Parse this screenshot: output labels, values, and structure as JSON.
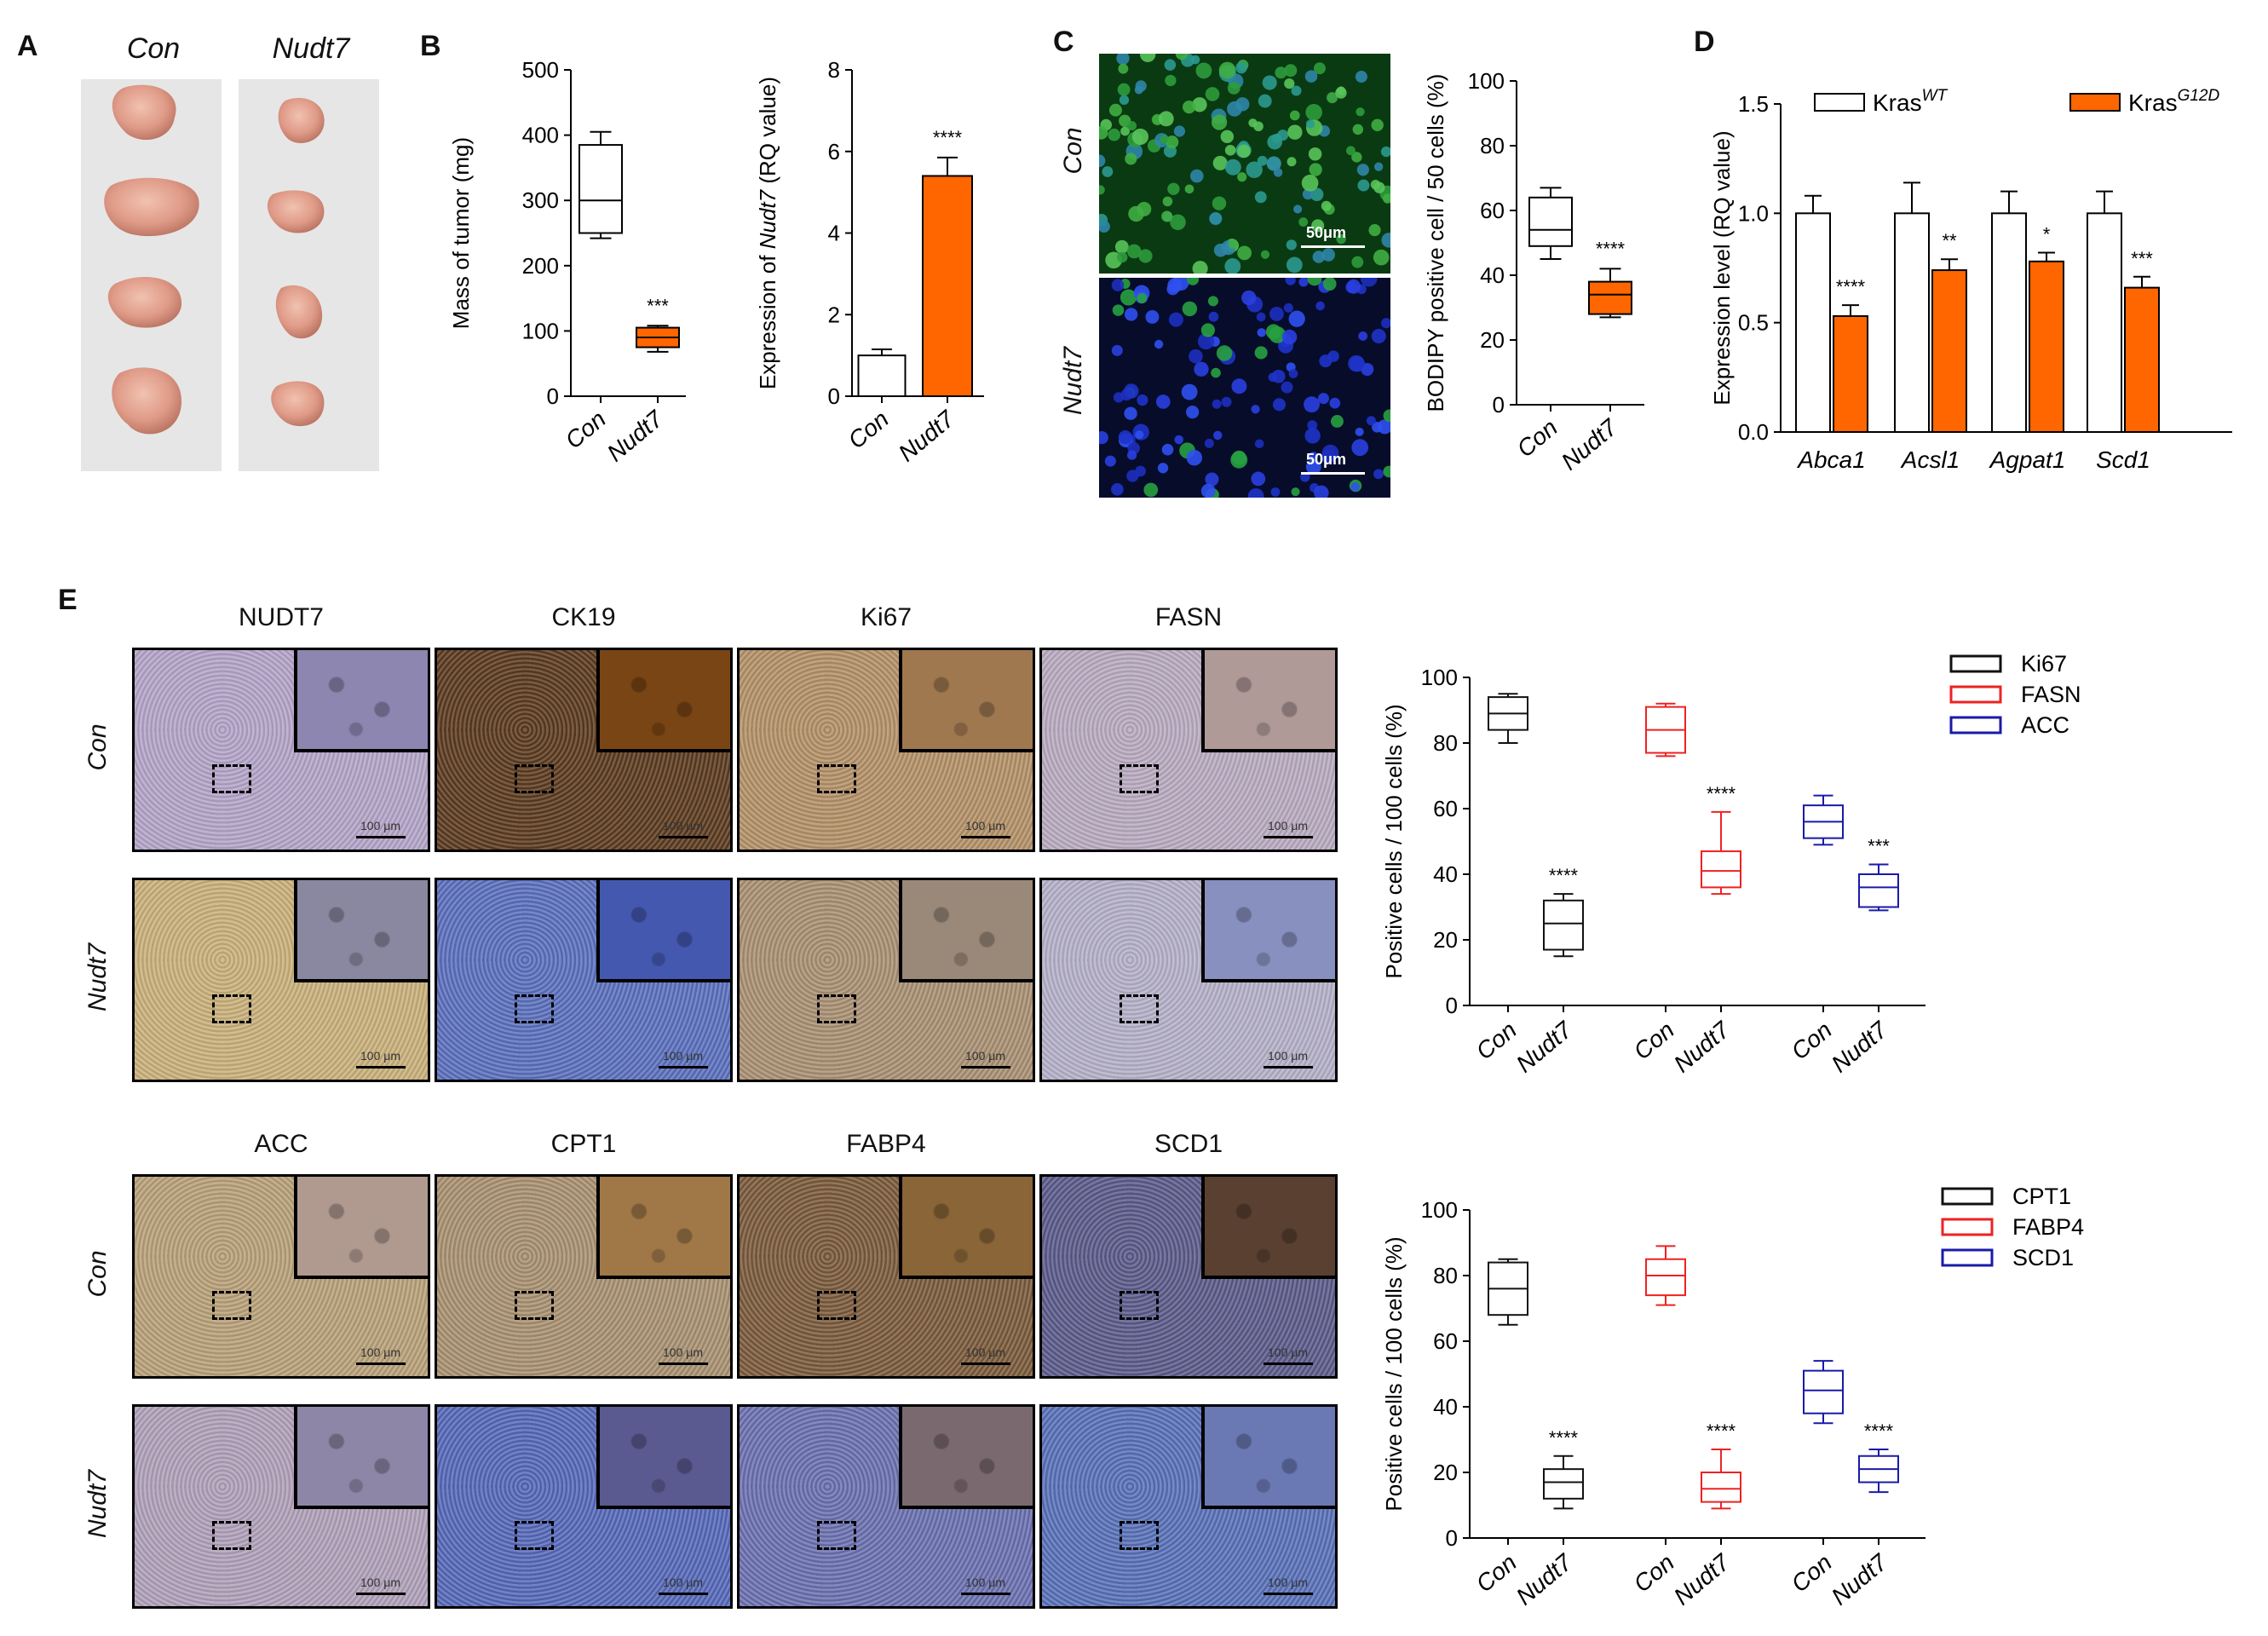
{
  "panel_labels": {
    "A": "A",
    "B": "B",
    "C": "C",
    "D": "D",
    "E": "E"
  },
  "panelA": {
    "col1": "Con",
    "col2": "Nudt7"
  },
  "colors": {
    "con_fill": "#ffffff",
    "nudt7_fill": "#ff6600",
    "ki67": "#111111",
    "fasn": "#ee2222",
    "acc": "#1a1aa8"
  },
  "chart_data": [
    {
      "type": "box",
      "id": "B1",
      "ylabel": "Mass of tumor (mg)",
      "categories": [
        "Con",
        "Nudt7"
      ],
      "ylim": [
        0,
        500
      ],
      "yticks": [
        0,
        100,
        200,
        300,
        400,
        500
      ],
      "boxes": [
        {
          "min": 242,
          "q1": 250,
          "median": 300,
          "q3": 385,
          "max": 405
        },
        {
          "min": 68,
          "q1": 75,
          "median": 90,
          "q3": 105,
          "max": 108
        }
      ],
      "annotations": [
        "",
        "***"
      ]
    },
    {
      "type": "bar",
      "id": "B2",
      "ylabel_pre": "Expression of ",
      "ylabel_gene": "Nudt7",
      "ylabel_post": " (RQ value)",
      "categories": [
        "Con",
        "Nudt7"
      ],
      "values": [
        1.0,
        5.4
      ],
      "errors": [
        0.15,
        0.45
      ],
      "ylim": [
        0,
        8
      ],
      "yticks": [
        0,
        2,
        4,
        6,
        8
      ],
      "annotations": [
        "",
        "****"
      ]
    },
    {
      "type": "box",
      "id": "C",
      "ylabel": "BODIPY positive cell / 50 cells (%)",
      "categories": [
        "Con",
        "Nudt7"
      ],
      "ylim": [
        0,
        100
      ],
      "yticks": [
        0,
        20,
        40,
        60,
        80,
        100
      ],
      "boxes": [
        {
          "min": 45,
          "q1": 49,
          "median": 54,
          "q3": 64,
          "max": 67
        },
        {
          "min": 27,
          "q1": 28,
          "median": 34,
          "q3": 38,
          "max": 42
        }
      ],
      "annotations": [
        "",
        "****"
      ]
    },
    {
      "type": "bar",
      "id": "D",
      "ylabel": "Expression level (RQ value)",
      "categories": [
        "Abca1",
        "Acsl1",
        "Agpat1",
        "Scd1"
      ],
      "ylim": [
        0,
        1.5
      ],
      "yticks": [
        "0.0",
        "0.5",
        "1.0",
        "1.5"
      ],
      "series": [
        {
          "name": "Kras",
          "sup": "WT",
          "values": [
            1.0,
            1.0,
            1.0,
            1.0
          ],
          "errors": [
            0.08,
            0.14,
            0.1,
            0.1
          ]
        },
        {
          "name": "Kras",
          "sup": "G12D",
          "values": [
            0.53,
            0.74,
            0.78,
            0.66
          ],
          "errors": [
            0.05,
            0.05,
            0.04,
            0.05
          ]
        }
      ],
      "annotations": [
        "****",
        "**",
        "*",
        "***"
      ]
    },
    {
      "type": "box",
      "id": "E1",
      "ylabel": "Positive cells / 100 cells (%)",
      "ylim": [
        0,
        100
      ],
      "yticks": [
        0,
        20,
        40,
        60,
        80,
        100
      ],
      "categories": [
        "Con",
        "Nudt7",
        "Con",
        "Nudt7",
        "Con",
        "Nudt7"
      ],
      "legend": [
        "Ki67",
        "FASN",
        "ACC"
      ],
      "groups": [
        {
          "name": "Ki67",
          "boxes": [
            {
              "min": 80,
              "q1": 84,
              "median": 89,
              "q3": 94,
              "max": 95
            },
            {
              "min": 15,
              "q1": 17,
              "median": 25,
              "q3": 32,
              "max": 34
            }
          ],
          "annotation": "****"
        },
        {
          "name": "FASN",
          "boxes": [
            {
              "min": 76,
              "q1": 77,
              "median": 84,
              "q3": 91,
              "max": 92
            },
            {
              "min": 34,
              "q1": 36,
              "median": 41,
              "q3": 47,
              "max": 59
            }
          ],
          "annotation": "****"
        },
        {
          "name": "ACC",
          "boxes": [
            {
              "min": 49,
              "q1": 51,
              "median": 56,
              "q3": 61,
              "max": 64
            },
            {
              "min": 29,
              "q1": 30,
              "median": 36,
              "q3": 40,
              "max": 43
            }
          ],
          "annotation": "***"
        }
      ]
    },
    {
      "type": "box",
      "id": "E2",
      "ylabel": "Positive cells / 100 cells (%)",
      "ylim": [
        0,
        100
      ],
      "yticks": [
        0,
        20,
        40,
        60,
        80,
        100
      ],
      "categories": [
        "Con",
        "Nudt7",
        "Con",
        "Nudt7",
        "Con",
        "Nudt7"
      ],
      "legend": [
        "CPT1",
        "FABP4",
        "SCD1"
      ],
      "groups": [
        {
          "name": "CPT1",
          "boxes": [
            {
              "min": 65,
              "q1": 68,
              "median": 76,
              "q3": 84,
              "max": 85
            },
            {
              "min": 9,
              "q1": 12,
              "median": 17,
              "q3": 21,
              "max": 25
            }
          ],
          "annotation": "****"
        },
        {
          "name": "FABP4",
          "boxes": [
            {
              "min": 71,
              "q1": 74,
              "median": 80,
              "q3": 85,
              "max": 89
            },
            {
              "min": 9,
              "q1": 11,
              "median": 15,
              "q3": 20,
              "max": 27
            }
          ],
          "annotation": "****"
        },
        {
          "name": "SCD1",
          "boxes": [
            {
              "min": 35,
              "q1": 38,
              "median": 45,
              "q3": 51,
              "max": 54
            },
            {
              "min": 14,
              "q1": 17,
              "median": 21,
              "q3": 25,
              "max": 27
            }
          ],
          "annotation": "****"
        }
      ]
    }
  ],
  "panelC": {
    "row1": "Con",
    "row2": "Nudt7",
    "scale1": "50μm",
    "scale2": "50μm"
  },
  "panelE": {
    "headers_top": [
      "NUDT7",
      "CK19",
      "Ki67",
      "FASN"
    ],
    "headers_bottom": [
      "ACC",
      "CPT1",
      "FABP4",
      "SCD1"
    ],
    "row_con": "Con",
    "row_nudt7": "Nudt7",
    "scale_label": "100 μm"
  }
}
